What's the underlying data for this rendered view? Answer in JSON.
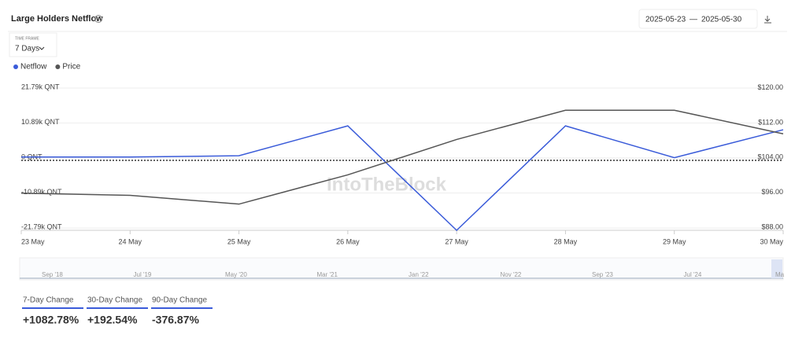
{
  "header": {
    "title": "Large Holders Netflow",
    "date_from": "2025-05-23",
    "date_sep": "—",
    "date_to": "2025-05-30"
  },
  "controls": {
    "time_frame_label": "TIME FRAME",
    "time_frame": "7 Days"
  },
  "watermark": "IntoTheBlock",
  "chart_data": {
    "type": "line",
    "categories": [
      "23 May",
      "24 May",
      "25 May",
      "26 May",
      "27 May",
      "28 May",
      "29 May",
      "30 May"
    ],
    "series": [
      {
        "name": "Netflow",
        "color": "#3a5bd9",
        "values": [
          300,
          300,
          700,
          10000,
          -22500,
          10000,
          100,
          8800
        ]
      },
      {
        "name": "Price",
        "color": "#555555",
        "axis": "y2",
        "values": [
          96.0,
          95.5,
          93.5,
          100.2,
          108.3,
          115.0,
          115.0,
          109.6
        ]
      }
    ],
    "ylim": [
      -22500,
      25200
    ],
    "yticks": [
      {
        "value": 21790,
        "label": "21.79k QNT"
      },
      {
        "value": 10890,
        "label": "10.89k QNT"
      },
      {
        "value": 0,
        "label": "0 QNT"
      },
      {
        "value": -10890,
        "label": "-10.89k QNT"
      },
      {
        "value": -21790,
        "label": "-21.79k QNT"
      }
    ],
    "y2lim": [
      87.5,
      122.6
    ],
    "y2ticks": [
      {
        "value": 120,
        "label": "$120.00"
      },
      {
        "value": 112,
        "label": "$112.00"
      },
      {
        "value": 104,
        "label": "$104.00"
      },
      {
        "value": 96,
        "label": "$96.00"
      },
      {
        "value": 88,
        "label": "$88.00"
      }
    ],
    "grid": true,
    "legend": "top-left"
  },
  "navigator": {
    "labels": [
      "Sep '18",
      "Jul '19",
      "May '20",
      "Mar '21",
      "Jan '22",
      "Nov '22",
      "Sep '23",
      "Jul '24",
      "Ma"
    ]
  },
  "stats": [
    {
      "label": "7-Day Change",
      "value": "+1082.78%"
    },
    {
      "label": "30-Day Change",
      "value": "+192.54%"
    },
    {
      "label": "90-Day Change",
      "value": "-376.87%"
    }
  ]
}
